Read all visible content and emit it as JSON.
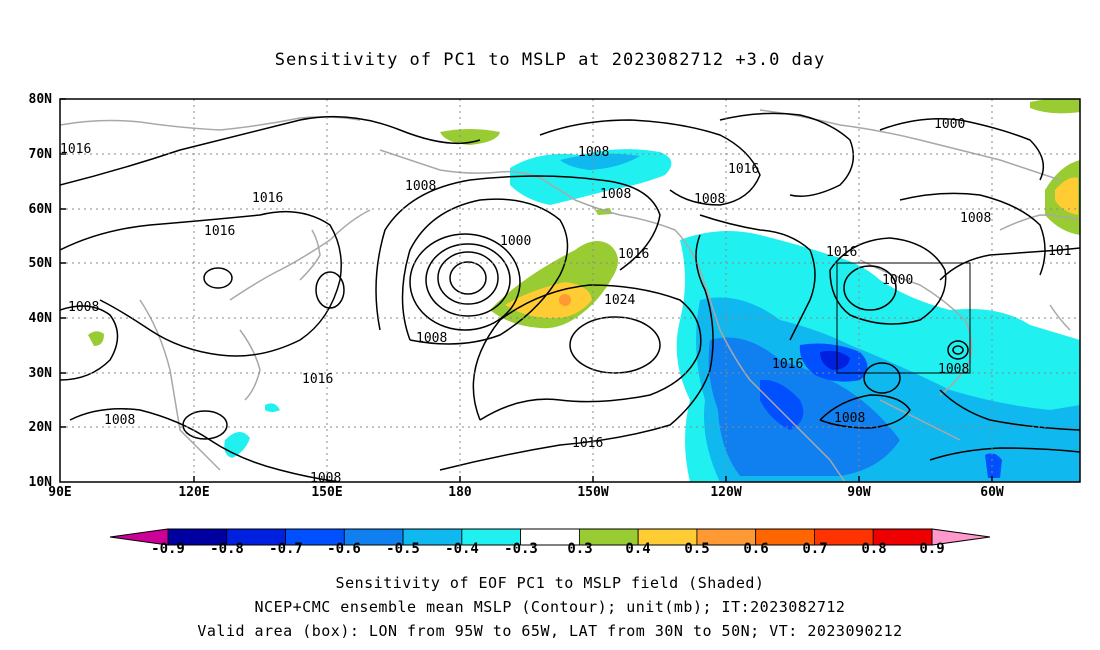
{
  "title": "Sensitivity of PC1 to MSLP at 2023082712 +3.0 day",
  "map": {
    "lat_ticks": [
      "80N",
      "70N",
      "60N",
      "50N",
      "40N",
      "30N",
      "20N",
      "10N"
    ],
    "lon_ticks": [
      "90E",
      "120E",
      "150E",
      "180",
      "150W",
      "120W",
      "90W",
      "60W"
    ],
    "contour_labels": [
      "1016",
      "1016",
      "1016",
      "1008",
      "1008",
      "1008",
      "1008",
      "1016",
      "1000",
      "1008",
      "1024",
      "1016",
      "1016",
      "1008",
      "1000",
      "1008",
      "1008",
      "1008",
      "101",
      "1016",
      "1016",
      "1008",
      "1000",
      "1008",
      "1016"
    ],
    "valid_box": {
      "lon_from": "95W",
      "lon_to": "65W",
      "lat_from": "30N",
      "lat_to": "50N"
    }
  },
  "colorbar": {
    "labels": [
      "-0.9",
      "-0.8",
      "-0.7",
      "-0.6",
      "-0.5",
      "-0.4",
      "-0.3",
      "0.3",
      "0.4",
      "0.5",
      "0.6",
      "0.7",
      "0.8",
      "0.9"
    ],
    "colors": [
      "#0000a0",
      "#0020e0",
      "#0050ff",
      "#1080f0",
      "#10b8f0",
      "#20f0f0",
      "#ffffff",
      "#99cc33",
      "#ffcc33",
      "#ff9933",
      "#ff6600",
      "#ff3300",
      "#ee0000"
    ],
    "low_arrow_color": "#cc0099",
    "high_arrow_color": "#ff99cc"
  },
  "captions": [
    "Sensitivity of EOF PC1 to MSLP field (Shaded)",
    "NCEP+CMC ensemble mean MSLP (Contour); unit(mb); IT:2023082712",
    "Valid area (box): LON from 95W to 65W, LAT from 30N to 50N; VT: 2023090212"
  ]
}
